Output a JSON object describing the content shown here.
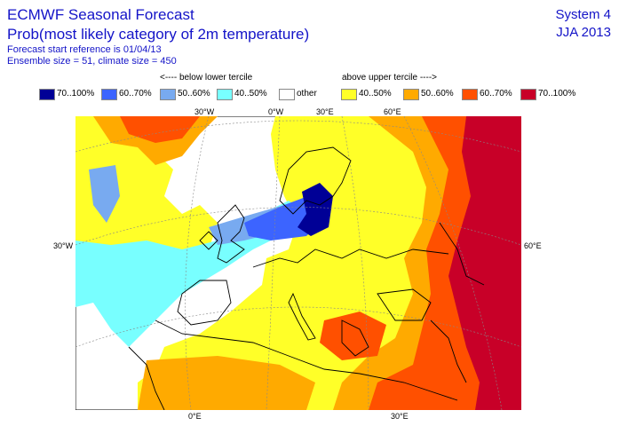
{
  "header": {
    "title": "ECMWF Seasonal Forecast",
    "subtitle": "Prob(most likely category of 2m temperature)",
    "start_ref": "Forecast start reference is 01/04/13",
    "ensemble": "Ensemble size = 51, climate size = 450",
    "system": "System 4",
    "season": "JJA 2013"
  },
  "legend": {
    "below_label": "<---- below lower tercile",
    "above_label": "above upper tercile ---->",
    "items": [
      {
        "label": "70..100%",
        "color": "#000096"
      },
      {
        "label": "60..70%",
        "color": "#3c64ff"
      },
      {
        "label": "50..60%",
        "color": "#78aaf0"
      },
      {
        "label": "40..50%",
        "color": "#78ffff"
      },
      {
        "label": "other",
        "color": "#ffffff"
      },
      {
        "label": "40..50%",
        "color": "#ffff28"
      },
      {
        "label": "50..60%",
        "color": "#ffaa00"
      },
      {
        "label": "60..70%",
        "color": "#ff5000"
      },
      {
        "label": "70..100%",
        "color": "#c80028"
      }
    ]
  },
  "axes": {
    "top": [
      "30°W",
      "0°W",
      "30°E",
      "60°E"
    ],
    "left": [
      "30°W"
    ],
    "right": [
      "60°E"
    ],
    "bottom": [
      "0°E",
      "30°E"
    ]
  }
}
